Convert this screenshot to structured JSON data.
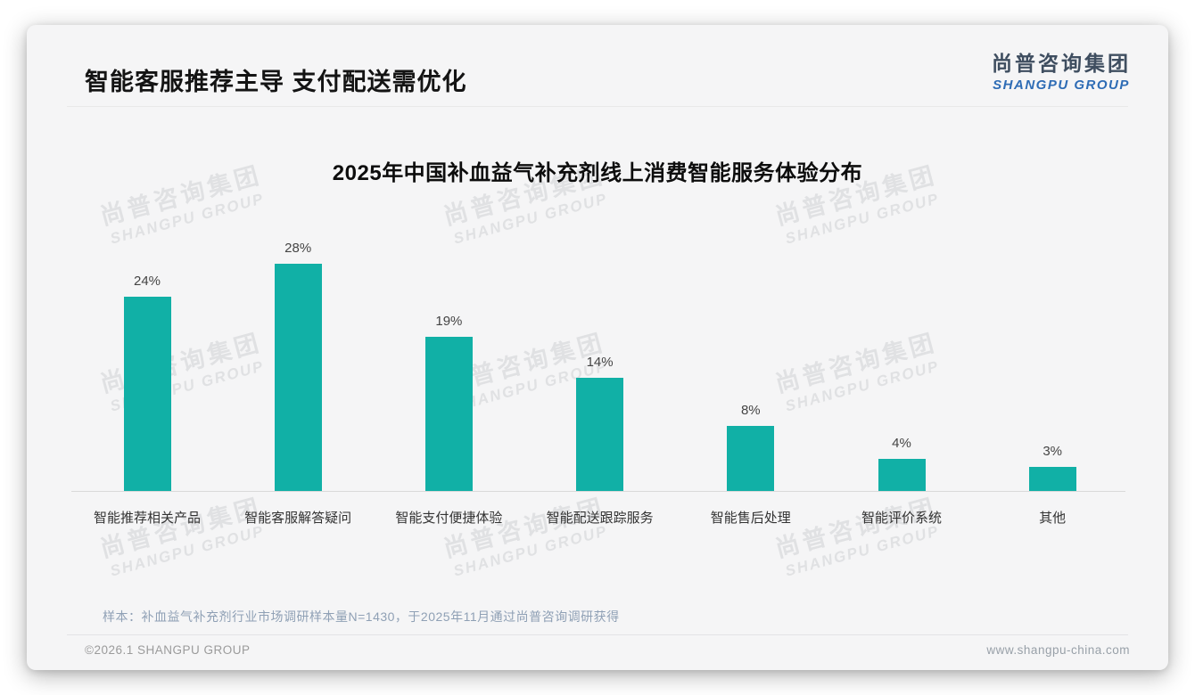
{
  "page": {
    "header": {
      "title": "智能客服推荐主导 支付配送需优化"
    },
    "logo": {
      "cn": "尚普咨询集团",
      "en": "SHANGPU GROUP"
    },
    "watermark": {
      "cn": "尚普咨询集团",
      "en": "SHANGPU GROUP"
    },
    "footnote": "样本：补血益气补充剂行业市场调研样本量N=1430，于2025年11月通过尚普咨询调研获得",
    "footer": {
      "left": "©2026.1 SHANGPU GROUP",
      "right": "www.shangpu-china.com"
    }
  },
  "chart_data": {
    "type": "bar",
    "title": "2025年中国补血益气补充剂线上消费智能服务体验分布",
    "categories": [
      "智能推荐相关产品",
      "智能客服解答疑问",
      "智能支付便捷体验",
      "智能配送跟踪服务",
      "智能售后处理",
      "智能评价系统",
      "其他"
    ],
    "values": [
      24,
      28,
      19,
      14,
      8,
      4,
      3
    ],
    "value_labels": [
      "24%",
      "28%",
      "19%",
      "14%",
      "8%",
      "4%",
      "3%"
    ],
    "unit": "%",
    "xlabel": "",
    "ylabel": "",
    "ylim": [
      0,
      30
    ],
    "grid": false,
    "legend": null,
    "bar_color": "#11b0a6"
  },
  "colors": {
    "bar_teal": "#11b0a6",
    "logo_blue": "#2e6cb5",
    "logo_dark": "#3f4e60",
    "footnote_gray_blue": "#8fa0b5",
    "axis_line": "#d9d9d9",
    "card_bg": "#f5f5f6"
  }
}
